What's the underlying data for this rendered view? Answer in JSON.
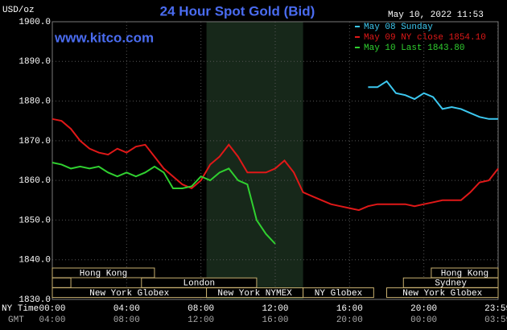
{
  "chart_data": {
    "type": "line",
    "title": "24 Hour Spot Gold (Bid)",
    "timestamp": "May 10, 2022 11:53",
    "site": "www.kitco.com",
    "y_axis_label": "USD/oz",
    "x_axis_label": "NY Time",
    "x2_axis_label": "GMT",
    "xlim": [
      0,
      24
    ],
    "ylim": [
      1830,
      1900
    ],
    "xticks": [
      {
        "value": 0,
        "label": "00:00"
      },
      {
        "value": 4,
        "label": "04:00"
      },
      {
        "value": 8,
        "label": "08:00"
      },
      {
        "value": 12,
        "label": "12:00"
      },
      {
        "value": 16,
        "label": "16:00"
      },
      {
        "value": 20,
        "label": "20:00"
      },
      {
        "value": 23.983,
        "label": "23:59"
      }
    ],
    "x2tick_labels": [
      "04:00",
      "08:00",
      "12:00",
      "16:00",
      "20:00",
      "00:00",
      "03:59"
    ],
    "yticks": [
      {
        "value": 1830,
        "label": "1830.0"
      },
      {
        "value": 1840,
        "label": "1840.0"
      },
      {
        "value": 1850,
        "label": "1850.0"
      },
      {
        "value": 1860,
        "label": "1860.0"
      },
      {
        "value": 1870,
        "label": "1870.0"
      },
      {
        "value": 1880,
        "label": "1880.0"
      },
      {
        "value": 1890,
        "label": "1890.0"
      },
      {
        "value": 1900,
        "label": "1900.0"
      }
    ],
    "grid": true,
    "highlight": [
      8.3,
      13.5
    ],
    "session_rows": [
      [
        {
          "name": "Hong Kong",
          "start": 0,
          "end": 5.5
        },
        {
          "name": "Hong Kong",
          "start": 20.4,
          "end": 24
        }
      ],
      [
        {
          "start": 0,
          "end": 1
        },
        {
          "name": "London",
          "start": 4.8,
          "end": 11
        },
        {
          "name": "Sydney",
          "start": 18.9,
          "end": 24
        }
      ],
      [
        {
          "name": "New York Globex",
          "start": 0,
          "end": 8.3
        },
        {
          "name": "New York NYMEX",
          "start": 8.3,
          "end": 13.5
        },
        {
          "name": "NY Globex",
          "start": 13.5,
          "end": 17.3
        },
        {
          "name": "New York Globex",
          "start": 18,
          "end": 24
        }
      ]
    ],
    "x": [
      0,
      0.5,
      1,
      1.5,
      2,
      2.5,
      3,
      3.5,
      4,
      4.5,
      5,
      5.5,
      6,
      6.5,
      7,
      7.5,
      8,
      8.5,
      9,
      9.5,
      10,
      10.5,
      11,
      11.5,
      12,
      12.5,
      13,
      13.5,
      14,
      14.5,
      15,
      15.5,
      16,
      16.5,
      17,
      17.5,
      18,
      18.5,
      19,
      19.5,
      20,
      20.5,
      21,
      21.5,
      22,
      22.5,
      23,
      23.5,
      24
    ],
    "series": [
      {
        "name": "May 08 Sunday",
        "color": "#3cc8f0",
        "values": [
          null,
          null,
          null,
          null,
          null,
          null,
          null,
          null,
          null,
          null,
          null,
          null,
          null,
          null,
          null,
          null,
          null,
          null,
          null,
          null,
          null,
          null,
          null,
          null,
          null,
          null,
          null,
          null,
          null,
          null,
          null,
          null,
          null,
          null,
          1883.5,
          1883.5,
          1885,
          1882,
          1881.5,
          1880.5,
          1882,
          1881,
          1878,
          1878.5,
          1878,
          1877,
          1876,
          1875.5,
          1875.5
        ]
      },
      {
        "name": "May 09 NY close 1854.10",
        "color": "#e01818",
        "values": [
          1875.5,
          1875,
          1873,
          1870,
          1868,
          1867,
          1866.5,
          1868,
          1867,
          1868.5,
          1869,
          1866,
          1863,
          1861,
          1859,
          1858,
          1860,
          1864,
          1866,
          1869,
          1866,
          1862,
          1862,
          1862,
          1863,
          1865,
          1862,
          1857,
          1856,
          1855,
          1854,
          1853.5,
          1853,
          1852.5,
          1853.5,
          1854,
          1854,
          1854,
          1854,
          1853.5,
          1854,
          1854.5,
          1855,
          1855,
          1855,
          1857,
          1859.5,
          1860,
          1863
        ]
      },
      {
        "name": "May 10 Last 1843.80",
        "color": "#30d030",
        "values": [
          1864.5,
          1864,
          1863,
          1863.5,
          1863,
          1863.5,
          1862,
          1861,
          1862,
          1861,
          1862,
          1863.5,
          1862,
          1858,
          1858,
          1858.5,
          1861,
          1860,
          1862,
          1863,
          1860,
          1859,
          1850,
          1846.5,
          1844,
          null,
          null,
          null,
          null,
          null,
          null,
          null,
          null,
          null,
          null,
          null,
          null,
          null,
          null,
          null,
          null,
          null,
          null,
          null,
          null,
          null,
          null,
          null,
          null
        ]
      }
    ]
  }
}
